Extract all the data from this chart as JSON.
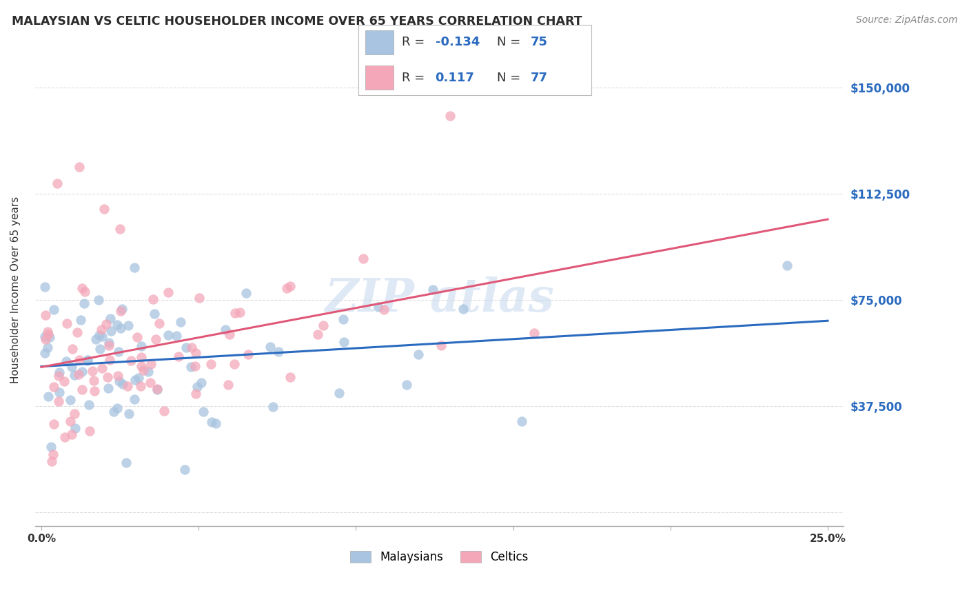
{
  "title": "MALAYSIAN VS CELTIC HOUSEHOLDER INCOME OVER 65 YEARS CORRELATION CHART",
  "source": "Source: ZipAtlas.com",
  "ylabel": "Householder Income Over 65 years",
  "xlim": [
    -0.002,
    0.255
  ],
  "ylim": [
    -5000,
    162000
  ],
  "yticks": [
    0,
    37500,
    75000,
    112500,
    150000
  ],
  "ytick_labels": [
    "",
    "$37,500",
    "$75,000",
    "$112,500",
    "$150,000"
  ],
  "xticks": [
    0.0,
    0.05,
    0.1,
    0.15,
    0.2,
    0.25
  ],
  "xtick_labels": [
    "0.0%",
    "",
    "",
    "",
    "",
    "25.0%"
  ],
  "malaysian_color": "#a8c4e0",
  "celtic_color": "#f4a7b9",
  "malaysian_line_color": "#2b6bbf",
  "celtic_line_color": "#e05878",
  "legend_text_color": "#333333",
  "legend_val_color": "#2b6bbf",
  "watermark_color": "#c8d8e8",
  "R_malaysian": -0.134,
  "N_malaysian": 75,
  "R_celtic": 0.117,
  "N_celtic": 77,
  "malaysian_marker_size": 100,
  "celtic_marker_size": 100
}
